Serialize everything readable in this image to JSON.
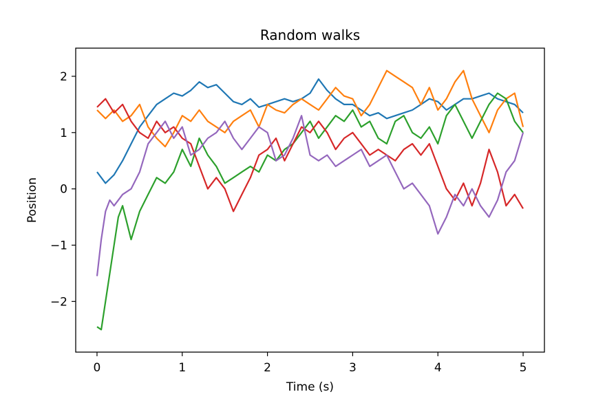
{
  "chart_data": {
    "type": "line",
    "title": "Random walks",
    "xlabel": "Time (s)",
    "ylabel": "Position",
    "xlim": [
      -0.25,
      5.25
    ],
    "ylim": [
      -2.9,
      2.5
    ],
    "xticks": [
      0,
      1,
      2,
      3,
      4,
      5
    ],
    "xtick_labels": [
      "0",
      "1",
      "2",
      "3",
      "4",
      "5"
    ],
    "yticks": [
      -2,
      -1,
      0,
      1,
      2
    ],
    "ytick_labels": [
      "−2",
      "−1",
      "0",
      "1",
      "2"
    ],
    "grid": false,
    "legend": "none",
    "series": [
      {
        "color": "#1f77b4",
        "x": [
          0,
          0.1,
          0.2,
          0.3,
          0.4,
          0.5,
          0.6,
          0.7,
          0.8,
          0.9,
          1.0,
          1.1,
          1.2,
          1.3,
          1.4,
          1.5,
          1.6,
          1.7,
          1.8,
          1.9,
          2.0,
          2.1,
          2.2,
          2.3,
          2.4,
          2.5,
          2.6,
          2.7,
          2.8,
          2.9,
          3.0,
          3.1,
          3.2,
          3.3,
          3.4,
          3.5,
          3.6,
          3.7,
          3.8,
          3.9,
          4.0,
          4.1,
          4.2,
          4.3,
          4.4,
          4.5,
          4.6,
          4.7,
          4.8,
          4.9,
          5.0
        ],
        "y": [
          0.3,
          0.1,
          0.25,
          0.5,
          0.8,
          1.1,
          1.3,
          1.5,
          1.6,
          1.7,
          1.65,
          1.75,
          1.9,
          1.8,
          1.85,
          1.7,
          1.55,
          1.5,
          1.6,
          1.45,
          1.5,
          1.55,
          1.6,
          1.55,
          1.6,
          1.7,
          1.95,
          1.75,
          1.6,
          1.5,
          1.5,
          1.4,
          1.3,
          1.35,
          1.25,
          1.3,
          1.35,
          1.4,
          1.5,
          1.6,
          1.55,
          1.4,
          1.5,
          1.6,
          1.6,
          1.65,
          1.7,
          1.6,
          1.55,
          1.5,
          1.35
        ]
      },
      {
        "color": "#ff7f0e",
        "x": [
          0,
          0.1,
          0.2,
          0.3,
          0.4,
          0.5,
          0.6,
          0.7,
          0.8,
          0.9,
          1.0,
          1.1,
          1.2,
          1.3,
          1.4,
          1.5,
          1.6,
          1.7,
          1.8,
          1.9,
          2.0,
          2.1,
          2.2,
          2.3,
          2.4,
          2.5,
          2.6,
          2.7,
          2.8,
          2.9,
          3.0,
          3.1,
          3.2,
          3.3,
          3.4,
          3.5,
          3.6,
          3.7,
          3.8,
          3.9,
          4.0,
          4.1,
          4.2,
          4.3,
          4.4,
          4.5,
          4.6,
          4.7,
          4.8,
          4.9,
          5.0
        ],
        "y": [
          1.4,
          1.25,
          1.4,
          1.2,
          1.3,
          1.5,
          1.1,
          0.9,
          0.75,
          1.0,
          1.3,
          1.2,
          1.4,
          1.2,
          1.1,
          1.0,
          1.2,
          1.3,
          1.4,
          1.1,
          1.5,
          1.4,
          1.35,
          1.5,
          1.6,
          1.5,
          1.4,
          1.6,
          1.8,
          1.65,
          1.6,
          1.3,
          1.5,
          1.8,
          2.1,
          2.0,
          1.9,
          1.8,
          1.5,
          1.8,
          1.4,
          1.6,
          1.9,
          2.1,
          1.6,
          1.3,
          1.0,
          1.4,
          1.6,
          1.7,
          1.1
        ]
      },
      {
        "color": "#2ca02c",
        "x": [
          0,
          0.05,
          0.1,
          0.15,
          0.2,
          0.25,
          0.3,
          0.35,
          0.4,
          0.5,
          0.6,
          0.7,
          0.8,
          0.9,
          1.0,
          1.1,
          1.2,
          1.3,
          1.4,
          1.5,
          1.6,
          1.7,
          1.8,
          1.9,
          2.0,
          2.1,
          2.2,
          2.3,
          2.4,
          2.5,
          2.6,
          2.7,
          2.8,
          2.9,
          3.0,
          3.1,
          3.2,
          3.3,
          3.4,
          3.5,
          3.6,
          3.7,
          3.8,
          3.9,
          4.0,
          4.1,
          4.2,
          4.3,
          4.4,
          4.5,
          4.6,
          4.7,
          4.8,
          4.9,
          5.0
        ],
        "y": [
          -2.45,
          -2.5,
          -2.0,
          -1.5,
          -1.0,
          -0.5,
          -0.3,
          -0.6,
          -0.9,
          -0.4,
          -0.1,
          0.2,
          0.1,
          0.3,
          0.7,
          0.4,
          0.9,
          0.6,
          0.4,
          0.1,
          0.2,
          0.3,
          0.4,
          0.3,
          0.6,
          0.5,
          0.7,
          0.8,
          1.0,
          1.2,
          0.9,
          1.1,
          1.3,
          1.2,
          1.4,
          1.1,
          1.2,
          0.9,
          0.8,
          1.2,
          1.3,
          1.0,
          0.9,
          1.1,
          0.8,
          1.3,
          1.5,
          1.2,
          0.9,
          1.2,
          1.5,
          1.7,
          1.6,
          1.2,
          1.0
        ]
      },
      {
        "color": "#d62728",
        "x": [
          0,
          0.1,
          0.2,
          0.3,
          0.4,
          0.5,
          0.6,
          0.7,
          0.8,
          0.9,
          1.0,
          1.1,
          1.2,
          1.3,
          1.4,
          1.5,
          1.6,
          1.7,
          1.8,
          1.9,
          2.0,
          2.1,
          2.2,
          2.3,
          2.4,
          2.5,
          2.6,
          2.7,
          2.8,
          2.9,
          3.0,
          3.1,
          3.2,
          3.3,
          3.4,
          3.5,
          3.6,
          3.7,
          3.8,
          3.9,
          4.0,
          4.1,
          4.2,
          4.3,
          4.4,
          4.5,
          4.6,
          4.7,
          4.8,
          4.9,
          5.0
        ],
        "y": [
          1.45,
          1.6,
          1.35,
          1.5,
          1.2,
          1.0,
          0.9,
          1.2,
          1.0,
          1.1,
          0.9,
          0.8,
          0.4,
          0.0,
          0.2,
          0.0,
          -0.4,
          -0.1,
          0.2,
          0.6,
          0.7,
          0.9,
          0.5,
          0.8,
          1.1,
          1.0,
          1.2,
          1.0,
          0.7,
          0.9,
          1.0,
          0.8,
          0.6,
          0.7,
          0.6,
          0.5,
          0.7,
          0.8,
          0.6,
          0.8,
          0.4,
          0.0,
          -0.2,
          0.1,
          -0.3,
          0.1,
          0.7,
          0.3,
          -0.3,
          -0.1,
          -0.35
        ]
      },
      {
        "color": "#9467bd",
        "x": [
          0,
          0.05,
          0.1,
          0.15,
          0.2,
          0.3,
          0.4,
          0.5,
          0.6,
          0.7,
          0.8,
          0.9,
          1.0,
          1.1,
          1.2,
          1.3,
          1.4,
          1.5,
          1.6,
          1.7,
          1.8,
          1.9,
          2.0,
          2.1,
          2.2,
          2.3,
          2.4,
          2.5,
          2.6,
          2.7,
          2.8,
          2.9,
          3.0,
          3.1,
          3.2,
          3.3,
          3.4,
          3.5,
          3.6,
          3.7,
          3.8,
          3.9,
          4.0,
          4.1,
          4.2,
          4.3,
          4.4,
          4.5,
          4.6,
          4.7,
          4.8,
          4.9,
          5.0
        ],
        "y": [
          -1.55,
          -0.9,
          -0.4,
          -0.2,
          -0.3,
          -0.1,
          0.0,
          0.3,
          0.8,
          1.0,
          1.2,
          0.9,
          1.1,
          0.6,
          0.7,
          0.9,
          1.0,
          1.2,
          0.9,
          0.7,
          0.9,
          1.1,
          1.0,
          0.5,
          0.6,
          0.9,
          1.3,
          0.6,
          0.5,
          0.6,
          0.4,
          0.5,
          0.6,
          0.7,
          0.4,
          0.5,
          0.6,
          0.3,
          0.0,
          0.1,
          -0.1,
          -0.3,
          -0.8,
          -0.5,
          -0.1,
          -0.3,
          0.0,
          -0.3,
          -0.5,
          -0.2,
          0.3,
          0.5,
          1.0
        ]
      }
    ]
  }
}
